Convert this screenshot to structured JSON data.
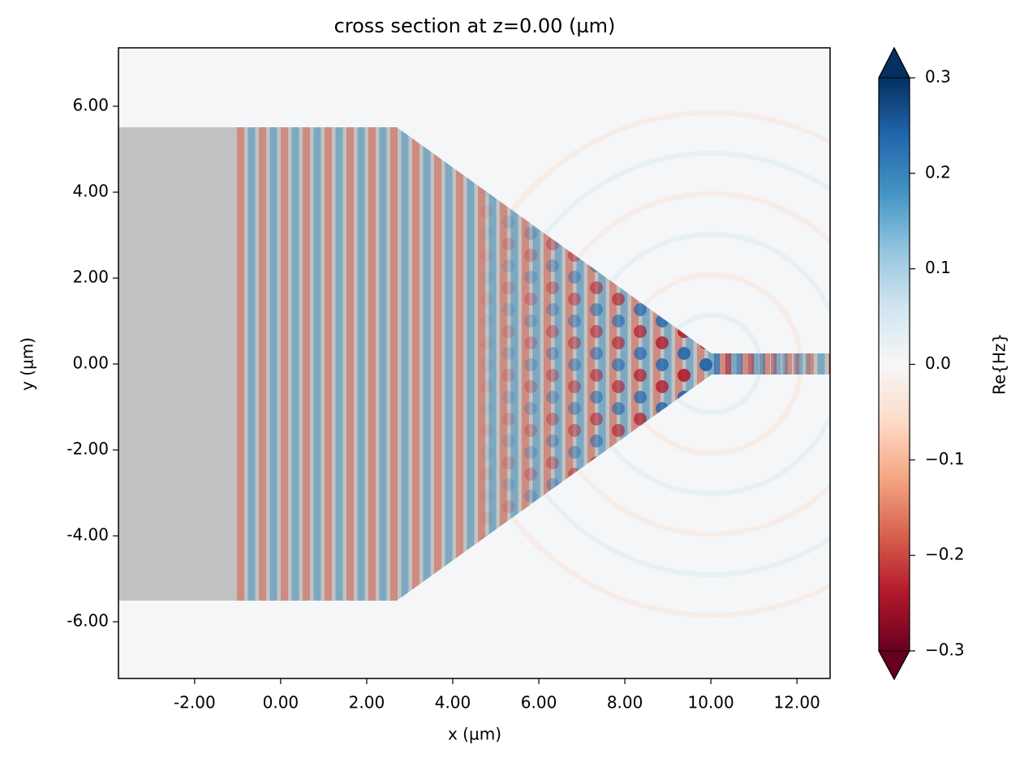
{
  "chart_data": {
    "type": "heatmap",
    "title": "cross section at z=0.00 (µm)",
    "x_label": "x (µm)",
    "y_label": "y (µm)",
    "xlim": [
      -3.77,
      12.77
    ],
    "xticks": [
      {
        "value": -2,
        "label": "-2.00"
      },
      {
        "value": 0,
        "label": "0.00"
      },
      {
        "value": 2,
        "label": "2.00"
      },
      {
        "value": 4,
        "label": "4.00"
      },
      {
        "value": 6,
        "label": "6.00"
      },
      {
        "value": 8,
        "label": "8.00"
      },
      {
        "value": 10,
        "label": "10.00"
      },
      {
        "value": 12,
        "label": "12.00"
      }
    ],
    "ylim": [
      -7.32,
      7.36
    ],
    "yticks": [
      {
        "value": -6,
        "label": "-6.00"
      },
      {
        "value": -4,
        "label": "-4.00"
      },
      {
        "value": -2,
        "label": "-2.00"
      },
      {
        "value": 0,
        "label": "0.00"
      },
      {
        "value": 2,
        "label": "2.00"
      },
      {
        "value": 4,
        "label": "4.00"
      },
      {
        "value": 6,
        "label": "6.00"
      }
    ],
    "colorbar": {
      "label": "Re{Hz}",
      "clim": [
        -0.3,
        0.3
      ],
      "ticks": [
        {
          "value": -0.3,
          "label": "−0.3"
        },
        {
          "value": -0.2,
          "label": "−0.2"
        },
        {
          "value": -0.1,
          "label": "−0.1"
        },
        {
          "value": 0,
          "label": "0.0"
        },
        0.1,
        0.2,
        0.3
      ],
      "colormap": [
        "#67001f",
        "#b2182b",
        "#d6604d",
        "#f4a582",
        "#fddbc7",
        "#f7f7f7",
        "#d1e5f0",
        "#92c5de",
        "#4393c3",
        "#2166ac",
        "#053061"
      ]
    }
  }
}
